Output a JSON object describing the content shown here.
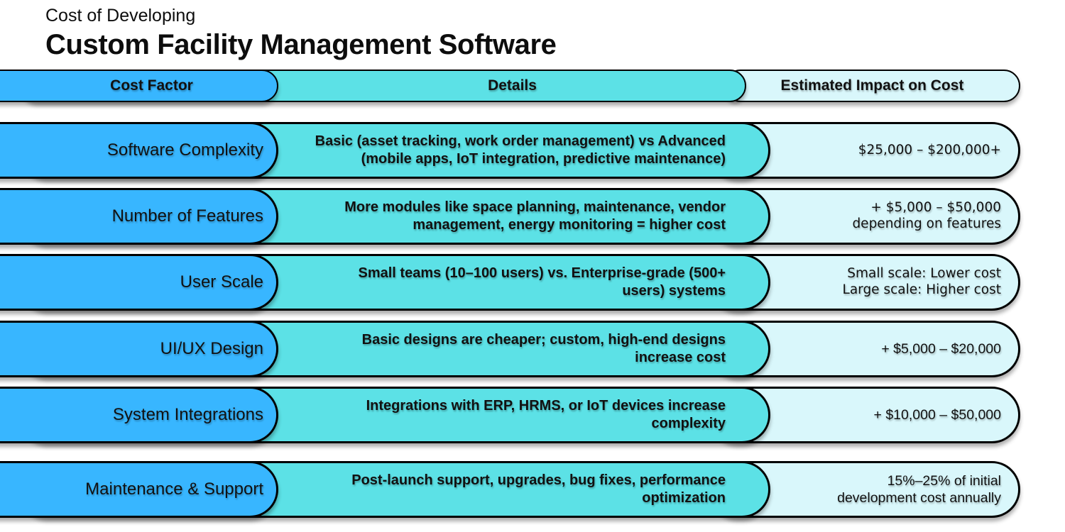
{
  "title": {
    "line1": "Cost of Developing",
    "line2": "Custom Facility Management Software"
  },
  "colors": {
    "factor_pill": "#38b6ff",
    "details_pill": "#5ce1e6",
    "impact_pill": "#d9f7fb",
    "border": "#000000",
    "text": "#111111",
    "background": "#ffffff"
  },
  "header": {
    "cost_factor": "Cost Factor",
    "details": "Details",
    "impact": "Estimated Impact on Cost"
  },
  "rows": [
    {
      "factor": "Software Complexity",
      "details": "Basic (asset tracking, work order management) vs Advanced\n(mobile apps, IoT integration, predictive maintenance)",
      "impact": "$25,000 – $200,000+"
    },
    {
      "factor": "Number of Features",
      "details": "More modules like space planning, maintenance, vendor\nmanagement, energy monitoring = higher cost",
      "impact": "+ $5,000 – $50,000\ndepending on features"
    },
    {
      "factor": "User Scale",
      "details": "Small teams (10–100 users) vs. Enterprise-grade (500+\nusers) systems",
      "impact": "Small scale: Lower cost\nLarge scale: Higher cost"
    },
    {
      "factor": "UI/UX Design",
      "details": "Basic designs are cheaper; custom, high-end designs\nincrease cost",
      "impact": "+ $5,000 – $20,000"
    },
    {
      "factor": "System Integrations",
      "details": "Integrations with ERP, HRMS, or IoT devices increase\ncomplexity",
      "impact": "+ $10,000 – $50,000"
    },
    {
      "factor": "Maintenance & Support",
      "details": "Post-launch support, upgrades, bug fixes, performance\noptimization",
      "impact": "15%–25% of initial\ndevelopment cost annually"
    }
  ],
  "chart_data": {
    "type": "table",
    "title": "Cost of Developing Custom Facility Management Software",
    "columns": [
      "Cost Factor",
      "Details",
      "Estimated Impact on Cost"
    ],
    "rows": [
      [
        "Software Complexity",
        "Basic (asset tracking, work order management) vs Advanced (mobile apps, IoT integration, predictive maintenance)",
        "$25,000 – $200,000+"
      ],
      [
        "Number of Features",
        "More modules like space planning, maintenance, vendor management, energy monitoring = higher cost",
        "+ $5,000 – $50,000 depending on features"
      ],
      [
        "User Scale",
        "Small teams (10–100 users) vs. Enterprise-grade (500+ users) systems",
        "Small scale: Lower cost\nLarge scale: Higher cost"
      ],
      [
        "UI/UX Design",
        "Basic designs are cheaper; custom, high-end designs increase cost",
        "+ $5,000 – $20,000"
      ],
      [
        "System Integrations",
        "Integrations with ERP, HRMS, or IoT devices increase complexity",
        "+ $10,000 – $50,000"
      ],
      [
        "Maintenance & Support",
        "Post-launch support, upgrades, bug fixes, performance optimization",
        "15%–25% of initial development cost annually"
      ]
    ]
  }
}
